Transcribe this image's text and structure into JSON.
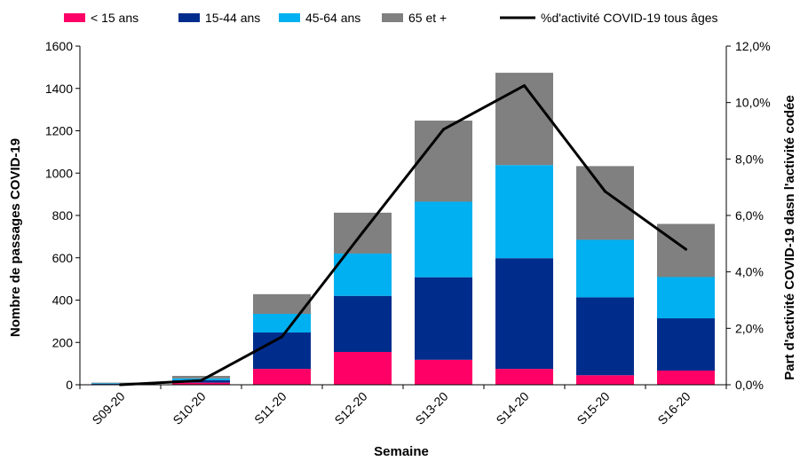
{
  "chart_data": {
    "type": "bar",
    "stacked": true,
    "categories": [
      "S09-20",
      "S10-20",
      "S11-20",
      "S12-20",
      "S13-20",
      "S14-20",
      "S15-20",
      "S16-20"
    ],
    "series": [
      {
        "name": "< 15 ans",
        "color": "#FF0066",
        "values": [
          1,
          10,
          75,
          155,
          118,
          75,
          45,
          67
        ]
      },
      {
        "name": "15-44 ans",
        "color": "#002D8C",
        "values": [
          3,
          12,
          172,
          265,
          390,
          523,
          368,
          247
        ]
      },
      {
        "name": "45-64 ans",
        "color": "#00B0F0",
        "values": [
          3,
          8,
          88,
          200,
          357,
          440,
          272,
          195
        ]
      },
      {
        "name": "65 et +",
        "color": "#808080",
        "values": [
          3,
          12,
          93,
          193,
          383,
          436,
          348,
          251
        ]
      }
    ],
    "line_series": {
      "name": "%d'activité COVID-19 tous âges",
      "color": "#000000",
      "values": [
        0.0,
        0.15,
        1.7,
        5.4,
        9.05,
        10.6,
        6.85,
        4.8
      ]
    },
    "xlabel": "Semaine",
    "ylabel": "Nombre de passages COVID-19",
    "y2label": "Part d'activité COVID-19 dasn l'activité codée",
    "ylim": [
      0,
      1600
    ],
    "y2lim": [
      0,
      12
    ],
    "yticks": [
      "0",
      "200",
      "400",
      "600",
      "800",
      "1000",
      "1200",
      "1400",
      "1600"
    ],
    "y2ticks": [
      "0,0%",
      "2,0%",
      "4,0%",
      "6,0%",
      "8,0%",
      "10,0%",
      "12,0%"
    ],
    "grid": false,
    "legend_position": "top"
  }
}
